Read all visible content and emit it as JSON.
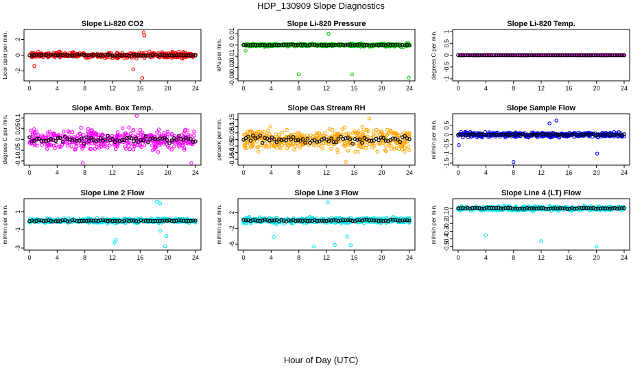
{
  "figure": {
    "title": "HDP_130909  Slope Diagnostics",
    "xlabel": "Hour of Day (UTC)"
  },
  "colors": {
    "reference_series": "#000000"
  },
  "chart_data": [
    {
      "type": "scatter",
      "title": "Slope Li-820 CO2",
      "ylabel": "Licor ppm per min.",
      "color": "#ff0000",
      "xlim": [
        0,
        24
      ],
      "ylim": [
        -3,
        3
      ],
      "xticks": [
        0,
        4,
        8,
        12,
        16,
        20,
        24
      ],
      "yticks": [
        -2,
        0,
        2
      ],
      "spread": 0.5,
      "outliers": [
        {
          "x": 16.5,
          "y": 2.9
        },
        {
          "x": 16.6,
          "y": 2.5
        },
        {
          "x": 16.3,
          "y": -2.9
        },
        {
          "x": 15.0,
          "y": -1.8
        },
        {
          "x": 0.7,
          "y": -1.4
        }
      ]
    },
    {
      "type": "scatter",
      "title": "Slope Li-820 Pressure",
      "ylabel": "kPa per min.",
      "color": "#00cc00",
      "xlim": [
        0,
        24
      ],
      "ylim": [
        -0.03,
        0.012
      ],
      "xticks": [
        0,
        4,
        8,
        12,
        16,
        20,
        24
      ],
      "yticks": [
        -0.03,
        -0.02,
        -0.01,
        0.0,
        0.01
      ],
      "spread": 0.002,
      "outliers": [
        {
          "x": 8.0,
          "y": -0.026
        },
        {
          "x": 15.7,
          "y": -0.026
        },
        {
          "x": 23.9,
          "y": -0.029
        },
        {
          "x": 12.3,
          "y": 0.01
        },
        {
          "x": 0.3,
          "y": -0.005
        }
      ]
    },
    {
      "type": "scatter",
      "title": "Slope Li-820 Temp.",
      "ylabel": "degrees C per min.",
      "color": "#cc00cc",
      "xlim": [
        0,
        24
      ],
      "ylim": [
        -1,
        1
      ],
      "xticks": [
        0,
        4,
        8,
        12,
        16,
        20,
        24
      ],
      "yticks": [
        -1.0,
        -0.5,
        0.0,
        0.5,
        1.0
      ],
      "spread": 0.0,
      "outliers": []
    },
    {
      "type": "scatter",
      "title": "Slope Amb. Box Temp.",
      "ylabel": "degrees C per min.",
      "color": "#ff00ff",
      "xlim": [
        0,
        24
      ],
      "ylim": [
        -0.11,
        0.11
      ],
      "xticks": [
        0,
        4,
        8,
        12,
        16,
        20,
        24
      ],
      "yticks": [
        -0.1,
        -0.05,
        0.0,
        0.05,
        0.1
      ],
      "spread": 0.07,
      "outliers": [
        {
          "x": 7.7,
          "y": -0.11
        },
        {
          "x": 23.4,
          "y": -0.11
        },
        {
          "x": 15.5,
          "y": 0.11
        }
      ]
    },
    {
      "type": "scatter",
      "title": "Slope Gas Stream RH",
      "ylabel": "percent per min.",
      "color": "#ffa500",
      "xlim": [
        0,
        24
      ],
      "ylim": [
        -0.18,
        0.18
      ],
      "xticks": [
        0,
        4,
        8,
        12,
        16,
        20,
        24
      ],
      "yticks": [
        -0.15,
        -0.1,
        -0.05,
        0.0,
        0.05,
        0.1,
        0.15
      ],
      "spread": 0.12,
      "outliers": [
        {
          "x": 18.2,
          "y": 0.16
        },
        {
          "x": 14.8,
          "y": -0.17
        }
      ]
    },
    {
      "type": "scatter",
      "title": "Slope Sample Flow",
      "ylabel": "ml/min per min.",
      "color": "#0000ff",
      "xlim": [
        0,
        24
      ],
      "ylim": [
        -1.5,
        1.0
      ],
      "xticks": [
        0,
        4,
        8,
        12,
        16,
        20,
        24
      ],
      "yticks": [
        -1.5,
        -1.0,
        -0.5,
        0.0,
        0.5
      ],
      "spread": 0.18,
      "outliers": [
        {
          "x": 8.0,
          "y": -1.45
        },
        {
          "x": 20.1,
          "y": -1.0
        },
        {
          "x": 0.1,
          "y": -0.55
        },
        {
          "x": 14.2,
          "y": 0.75
        },
        {
          "x": 13.2,
          "y": 0.6
        }
      ]
    },
    {
      "type": "scatter",
      "title": "Slope Line 2 Flow",
      "ylabel": "ml/min per min.",
      "color": "#00e5ee",
      "xlim": [
        0,
        24
      ],
      "ylim": [
        -3,
        2.2
      ],
      "xticks": [
        0,
        4,
        8,
        12,
        16,
        20,
        24
      ],
      "yticks": [
        -3,
        -1,
        1
      ],
      "spread": 0.35,
      "outliers": [
        {
          "x": 18.4,
          "y": 2.1
        },
        {
          "x": 18.9,
          "y": 1.9
        },
        {
          "x": 12.3,
          "y": -2.4
        },
        {
          "x": 12.5,
          "y": -2.1
        },
        {
          "x": 19.8,
          "y": -1.7
        },
        {
          "x": 19.6,
          "y": -2.8
        },
        {
          "x": 18.9,
          "y": -1.1
        }
      ]
    },
    {
      "type": "scatter",
      "title": "Slope Line 3 Flow",
      "ylabel": "ml/min per min.",
      "color": "#00e5ee",
      "xlim": [
        0,
        24
      ],
      "ylim": [
        -7,
        5
      ],
      "xticks": [
        0,
        4,
        8,
        12,
        16,
        20,
        24
      ],
      "yticks": [
        -6,
        -2,
        2
      ],
      "spread": 1.0,
      "outliers": [
        {
          "x": 12.2,
          "y": 4.6
        },
        {
          "x": 10.2,
          "y": -6.6
        },
        {
          "x": 13.2,
          "y": -6.2
        },
        {
          "x": 15.5,
          "y": -6.3
        },
        {
          "x": 4.4,
          "y": -4.2
        },
        {
          "x": 15.0,
          "y": -4.1
        }
      ]
    },
    {
      "type": "scatter",
      "title": "Slope Line 4 (LT) Flow",
      "ylabel": "ml/min per min.",
      "color": "#00e5ee",
      "xlim": [
        0,
        24
      ],
      "ylim": [
        -0.52,
        0.1
      ],
      "xticks": [
        0,
        4,
        8,
        12,
        16,
        20,
        24
      ],
      "yticks": [
        -0.5,
        -0.4,
        -0.3,
        -0.2,
        -0.1,
        0.0
      ],
      "spread": 0.04,
      "outliers": [
        {
          "x": 4.0,
          "y": -0.35
        },
        {
          "x": 12.0,
          "y": -0.43
        },
        {
          "x": 20.0,
          "y": -0.5
        }
      ]
    }
  ]
}
